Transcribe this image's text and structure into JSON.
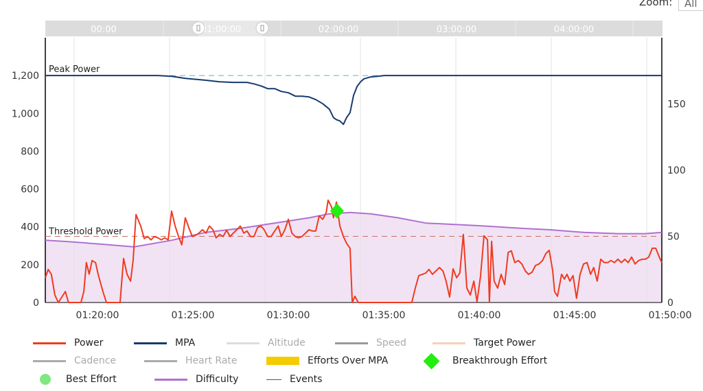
{
  "zoom": {
    "label": "Zoom:",
    "selected": "All"
  },
  "navigator": {
    "labels": [
      "00:00",
      "01:00:00",
      "02:00:00",
      "03:00:00",
      "04:00:00"
    ]
  },
  "colors": {
    "power": "#f03a1e",
    "mpa": "#163a6e",
    "difficulty": "#b070d0",
    "difficulty_fill": "#f1e3f4",
    "peak_line": "#5fb8a8",
    "threshold_line": "#c87060",
    "breakthrough": "#22ee11"
  },
  "legend": [
    {
      "label": "Power",
      "color": "#f03a1e",
      "kind": "line",
      "active": true
    },
    {
      "label": "MPA",
      "color": "#163a6e",
      "kind": "line",
      "active": true
    },
    {
      "label": "Altitude",
      "color": "#dddddd",
      "kind": "line",
      "active": false
    },
    {
      "label": "Speed",
      "color": "#999999",
      "kind": "line",
      "active": false
    },
    {
      "label": "Target Power",
      "color": "#f8d0b8",
      "kind": "line",
      "active": true
    },
    {
      "label": "Cadence",
      "color": "#aaaaaa",
      "kind": "line",
      "active": false
    },
    {
      "label": "Heart Rate",
      "color": "#aaaaaa",
      "kind": "line",
      "active": false
    },
    {
      "label": "Efforts Over MPA",
      "color": "#f5cc00",
      "kind": "block",
      "active": true
    },
    {
      "label": "Breakthrough Effort",
      "color": "#22ee11",
      "kind": "diamond",
      "active": true
    },
    {
      "label": "Best Effort",
      "color": "#80e880",
      "kind": "circle",
      "active": true
    },
    {
      "label": "Difficulty",
      "color": "#b070d0",
      "kind": "line",
      "active": true
    },
    {
      "label": "Events",
      "color": "#2a6a4a",
      "kind": "line",
      "active": true
    }
  ],
  "chart_data": {
    "type": "line",
    "xlim": [
      "01:17:16",
      "01:49:34"
    ],
    "x_ticks": [
      "01:20:00",
      "01:25:00",
      "01:30:00",
      "01:35:00",
      "01:40:00",
      "01:45:00",
      "01:50:00"
    ],
    "ylim_left": [
      0,
      1400
    ],
    "y_ticks_left": [
      "0",
      "200",
      "400",
      "600",
      "800",
      "1,000",
      "1,200"
    ],
    "ylim_right": [
      0,
      200
    ],
    "y_ticks_right": [
      "0",
      "50",
      "100",
      "150"
    ],
    "grid": "vertical",
    "reference_lines": [
      {
        "label": "Peak Power",
        "value": 1200
      },
      {
        "label": "Threshold Power",
        "value": 350
      }
    ],
    "series": [
      {
        "name": "Power",
        "axis": "left",
        "points": [
          [
            "01:17:16",
            131
          ],
          [
            "01:17:25",
            175
          ],
          [
            "01:17:35",
            149
          ],
          [
            "01:17:46",
            40
          ],
          [
            "01:17:57",
            0
          ],
          [
            "01:18:19",
            58
          ],
          [
            "01:18:29",
            0
          ],
          [
            "01:19:08",
            0
          ],
          [
            "01:19:17",
            58
          ],
          [
            "01:19:25",
            211
          ],
          [
            "01:19:34",
            150
          ],
          [
            "01:19:43",
            222
          ],
          [
            "01:19:54",
            211
          ],
          [
            "01:20:02",
            150
          ],
          [
            "01:20:17",
            58
          ],
          [
            "01:20:28",
            0
          ],
          [
            "01:21:11",
            0
          ],
          [
            "01:21:22",
            233
          ],
          [
            "01:21:33",
            149
          ],
          [
            "01:21:44",
            113
          ],
          [
            "01:21:52",
            222
          ],
          [
            "01:22:01",
            465
          ],
          [
            "01:22:16",
            404
          ],
          [
            "01:22:27",
            338
          ],
          [
            "01:22:38",
            349
          ],
          [
            "01:22:48",
            331
          ],
          [
            "01:22:59",
            349
          ],
          [
            "01:23:10",
            342
          ],
          [
            "01:23:21",
            331
          ],
          [
            "01:23:31",
            342
          ],
          [
            "01:23:42",
            331
          ],
          [
            "01:23:53",
            483
          ],
          [
            "01:24:04",
            404
          ],
          [
            "01:24:15",
            349
          ],
          [
            "01:24:25",
            305
          ],
          [
            "01:24:36",
            448
          ],
          [
            "01:24:47",
            396
          ],
          [
            "01:24:58",
            349
          ],
          [
            "01:25:09",
            356
          ],
          [
            "01:25:19",
            367
          ],
          [
            "01:25:30",
            385
          ],
          [
            "01:25:41",
            367
          ],
          [
            "01:25:52",
            404
          ],
          [
            "01:26:03",
            385
          ],
          [
            "01:26:13",
            342
          ],
          [
            "01:26:24",
            360
          ],
          [
            "01:26:35",
            349
          ],
          [
            "01:26:46",
            382
          ],
          [
            "01:26:57",
            349
          ],
          [
            "01:27:07",
            367
          ],
          [
            "01:27:18",
            385
          ],
          [
            "01:27:29",
            404
          ],
          [
            "01:27:40",
            367
          ],
          [
            "01:27:50",
            378
          ],
          [
            "01:28:01",
            349
          ],
          [
            "01:28:12",
            349
          ],
          [
            "01:28:23",
            396
          ],
          [
            "01:28:34",
            404
          ],
          [
            "01:28:44",
            385
          ],
          [
            "01:28:55",
            349
          ],
          [
            "01:29:06",
            349
          ],
          [
            "01:29:17",
            378
          ],
          [
            "01:29:28",
            404
          ],
          [
            "01:29:38",
            349
          ],
          [
            "01:29:49",
            385
          ],
          [
            "01:30:00",
            440
          ],
          [
            "01:30:11",
            367
          ],
          [
            "01:30:22",
            349
          ],
          [
            "01:30:32",
            342
          ],
          [
            "01:30:43",
            349
          ],
          [
            "01:30:54",
            367
          ],
          [
            "01:31:05",
            385
          ],
          [
            "01:31:16",
            378
          ],
          [
            "01:31:26",
            378
          ],
          [
            "01:31:37",
            458
          ],
          [
            "01:31:48",
            440
          ],
          [
            "01:31:59",
            476
          ],
          [
            "01:32:05",
            541
          ],
          [
            "01:32:16",
            505
          ],
          [
            "01:32:22",
            448
          ],
          [
            "01:32:31",
            531
          ],
          [
            "01:32:42",
            404
          ],
          [
            "01:32:53",
            349
          ],
          [
            "01:33:03",
            313
          ],
          [
            "01:33:14",
            287
          ],
          [
            "01:33:21",
            0
          ],
          [
            "01:33:29",
            33
          ],
          [
            "01:33:40",
            0
          ],
          [
            "01:36:28",
            0
          ],
          [
            "01:36:39",
            76
          ],
          [
            "01:36:50",
            142
          ],
          [
            "01:37:01",
            149
          ],
          [
            "01:37:12",
            156
          ],
          [
            "01:37:22",
            175
          ],
          [
            "01:37:33",
            149
          ],
          [
            "01:37:44",
            167
          ],
          [
            "01:37:55",
            185
          ],
          [
            "01:38:06",
            167
          ],
          [
            "01:38:16",
            113
          ],
          [
            "01:38:27",
            29
          ],
          [
            "01:38:38",
            178
          ],
          [
            "01:38:49",
            131
          ],
          [
            "01:38:59",
            156
          ],
          [
            "01:39:10",
            360
          ],
          [
            "01:39:21",
            76
          ],
          [
            "01:39:32",
            40
          ],
          [
            "01:39:43",
            113
          ],
          [
            "01:39:53",
            4
          ],
          [
            "01:40:04",
            138
          ],
          [
            "01:40:15",
            353
          ],
          [
            "01:40:26",
            331
          ],
          [
            "01:40:32",
            0
          ],
          [
            "01:40:39",
            324
          ],
          [
            "01:40:47",
            113
          ],
          [
            "01:40:58",
            76
          ],
          [
            "01:41:09",
            149
          ],
          [
            "01:41:20",
            95
          ],
          [
            "01:41:31",
            265
          ],
          [
            "01:41:41",
            273
          ],
          [
            "01:41:52",
            211
          ],
          [
            "01:42:03",
            222
          ],
          [
            "01:42:14",
            204
          ],
          [
            "01:42:25",
            167
          ],
          [
            "01:42:35",
            149
          ],
          [
            "01:42:46",
            160
          ],
          [
            "01:42:57",
            196
          ],
          [
            "01:43:08",
            204
          ],
          [
            "01:43:19",
            222
          ],
          [
            "01:43:29",
            258
          ],
          [
            "01:43:40",
            276
          ],
          [
            "01:43:51",
            167
          ],
          [
            "01:43:57",
            58
          ],
          [
            "01:44:06",
            33
          ],
          [
            "01:44:19",
            149
          ],
          [
            "01:44:28",
            124
          ],
          [
            "01:44:36",
            149
          ],
          [
            "01:44:45",
            113
          ],
          [
            "01:44:55",
            142
          ],
          [
            "01:45:06",
            22
          ],
          [
            "01:45:17",
            149
          ],
          [
            "01:45:28",
            204
          ],
          [
            "01:45:39",
            211
          ],
          [
            "01:45:50",
            149
          ],
          [
            "01:46:00",
            185
          ],
          [
            "01:46:11",
            113
          ],
          [
            "01:46:22",
            229
          ],
          [
            "01:46:33",
            211
          ],
          [
            "01:46:44",
            211
          ],
          [
            "01:46:54",
            222
          ],
          [
            "01:47:05",
            211
          ],
          [
            "01:47:16",
            229
          ],
          [
            "01:47:27",
            211
          ],
          [
            "01:47:38",
            229
          ],
          [
            "01:47:48",
            211
          ],
          [
            "01:47:59",
            240
          ],
          [
            "01:48:10",
            204
          ],
          [
            "01:48:21",
            222
          ],
          [
            "01:48:32",
            229
          ],
          [
            "01:48:42",
            229
          ],
          [
            "01:48:53",
            240
          ],
          [
            "01:49:04",
            287
          ],
          [
            "01:49:15",
            287
          ],
          [
            "01:49:26",
            240
          ],
          [
            "01:49:34",
            211
          ]
        ]
      },
      {
        "name": "MPA",
        "axis": "left",
        "points": [
          [
            "01:17:16",
            1200
          ],
          [
            "01:23:10",
            1200
          ],
          [
            "01:23:53",
            1196
          ],
          [
            "01:24:36",
            1185
          ],
          [
            "01:25:41",
            1175
          ],
          [
            "01:26:24",
            1167
          ],
          [
            "01:27:07",
            1164
          ],
          [
            "01:27:50",
            1164
          ],
          [
            "01:28:12",
            1156
          ],
          [
            "01:28:34",
            1145
          ],
          [
            "01:28:55",
            1131
          ],
          [
            "01:29:17",
            1131
          ],
          [
            "01:29:38",
            1116
          ],
          [
            "01:30:00",
            1109
          ],
          [
            "01:30:22",
            1091
          ],
          [
            "01:30:43",
            1091
          ],
          [
            "01:31:05",
            1087
          ],
          [
            "01:31:26",
            1073
          ],
          [
            "01:31:48",
            1051
          ],
          [
            "01:32:09",
            1022
          ],
          [
            "01:32:22",
            978
          ],
          [
            "01:32:31",
            967
          ],
          [
            "01:32:42",
            960
          ],
          [
            "01:32:53",
            942
          ],
          [
            "01:33:03",
            978
          ],
          [
            "01:33:14",
            1004
          ],
          [
            "01:33:25",
            1095
          ],
          [
            "01:33:36",
            1142
          ],
          [
            "01:33:47",
            1167
          ],
          [
            "01:33:57",
            1182
          ],
          [
            "01:34:19",
            1193
          ],
          [
            "01:34:40",
            1196
          ],
          [
            "01:35:02",
            1200
          ],
          [
            "01:49:34",
            1200
          ]
        ]
      },
      {
        "name": "Difficulty",
        "axis": "right",
        "area": true,
        "points": [
          [
            "01:17:16",
            47
          ],
          [
            "01:18:29",
            46
          ],
          [
            "01:20:17",
            44
          ],
          [
            "01:21:55",
            42
          ],
          [
            "01:23:53",
            47
          ],
          [
            "01:25:41",
            53
          ],
          [
            "01:27:29",
            56
          ],
          [
            "01:29:17",
            60
          ],
          [
            "01:31:05",
            64
          ],
          [
            "01:32:09",
            67
          ],
          [
            "01:33:14",
            68
          ],
          [
            "01:34:19",
            67
          ],
          [
            "01:35:45",
            64
          ],
          [
            "01:37:12",
            60
          ],
          [
            "01:38:38",
            59
          ],
          [
            "01:40:04",
            58
          ],
          [
            "01:42:14",
            56
          ],
          [
            "01:43:40",
            55
          ],
          [
            "01:45:28",
            53
          ],
          [
            "01:47:16",
            52
          ],
          [
            "01:48:42",
            52
          ],
          [
            "01:49:34",
            53
          ]
        ]
      }
    ],
    "markers": [
      {
        "name": "Breakthrough Effort",
        "x": "01:32:33",
        "y": 484,
        "shape": "diamond"
      }
    ]
  }
}
